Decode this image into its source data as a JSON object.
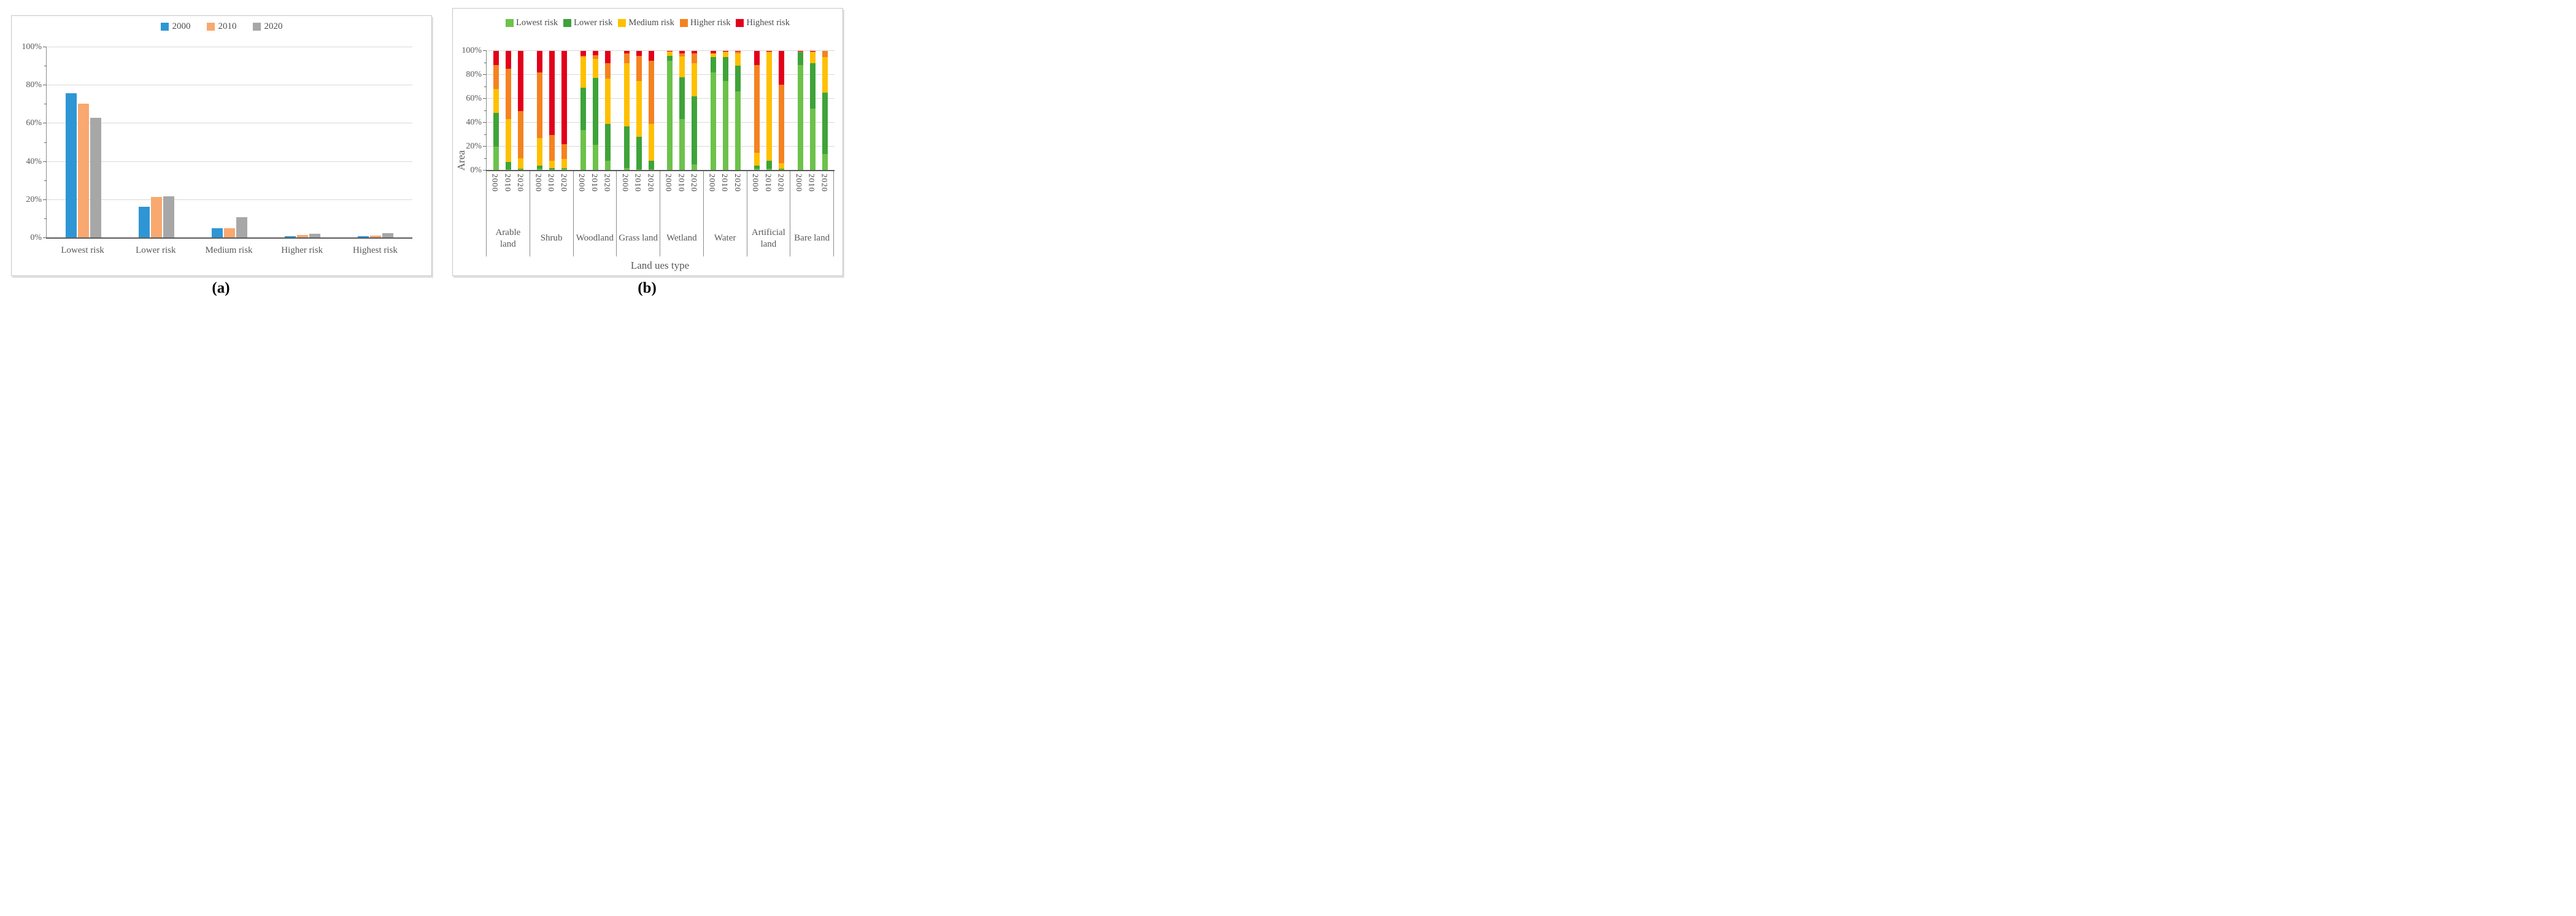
{
  "panels": {
    "a": {
      "caption": "(a)"
    },
    "b": {
      "caption": "(b)"
    }
  },
  "colors": {
    "gridline": "#d9d9d9",
    "axis": "#595959",
    "label_text": "#595959"
  },
  "chart_data": [
    {
      "panel": "a",
      "type": "bar",
      "title": "",
      "xlabel": "",
      "ylabel": "",
      "categories": [
        "Lowest risk",
        "Lower risk",
        "Medium risk",
        "Higher risk",
        "Highest risk"
      ],
      "series": [
        {
          "name": "2000",
          "color": "#2E96D4",
          "values": [
            76,
            16.5,
            5.2,
            1.0,
            1.0
          ]
        },
        {
          "name": "2010",
          "color": "#F9A870",
          "values": [
            70.5,
            21.5,
            5.0,
            1.5,
            1.3
          ]
        },
        {
          "name": "2020",
          "color": "#A7A7A7",
          "values": [
            63,
            22,
            11,
            2.2,
            2.5
          ]
        }
      ],
      "ylim": [
        0,
        100
      ],
      "grid": true,
      "legend_position": "top",
      "y_ticks": [
        {
          "value": 0,
          "label": "0%"
        },
        {
          "value": 20,
          "label": "20%"
        },
        {
          "value": 40,
          "label": "40%"
        },
        {
          "value": 60,
          "label": "60%"
        },
        {
          "value": 80,
          "label": "80%"
        },
        {
          "value": 100,
          "label": "100%"
        }
      ],
      "y_minor_ticks": [
        10,
        30,
        50,
        70,
        90
      ]
    },
    {
      "panel": "b",
      "type": "stacked-bar-100",
      "title": "",
      "xlabel": "Land ues type",
      "ylabel": "Area",
      "ylim": [
        0,
        100
      ],
      "grid": true,
      "legend_position": "top",
      "years": [
        "2000",
        "2010",
        "2020"
      ],
      "series_names": [
        "Lowest risk",
        "Lower risk",
        "Medium risk",
        "Higher risk",
        "Highest risk"
      ],
      "series_colors": [
        "#6CC24A",
        "#3EA339",
        "#FFC000",
        "#F58220",
        "#E2001A"
      ],
      "y_ticks": [
        {
          "value": 0,
          "label": "0%"
        },
        {
          "value": 20,
          "label": "20%"
        },
        {
          "value": 40,
          "label": "40%"
        },
        {
          "value": 60,
          "label": "60%"
        },
        {
          "value": 80,
          "label": "80%"
        },
        {
          "value": 100,
          "label": "100%"
        }
      ],
      "y_minor_ticks": [
        10,
        30,
        50,
        70,
        90
      ],
      "groups": [
        {
          "label": "Arable land",
          "values": {
            "2000": [
              20,
              28,
              20,
              20,
              12
            ],
            "2010": [
              1,
              6,
              36,
              42,
              15
            ],
            "2020": [
              1,
              0.5,
              9,
              39.5,
              50
            ]
          }
        },
        {
          "label": "Shrub",
          "values": {
            "2000": [
              1.5,
              2.5,
              23,
              55,
              18
            ],
            "2010": [
              1,
              1,
              6,
              22,
              70
            ],
            "2020": [
              1.5,
              0.5,
              8,
              12,
              78
            ]
          }
        },
        {
          "label": "Woodland",
          "values": {
            "2000": [
              34,
              35,
              26,
              1,
              4
            ],
            "2010": [
              21.5,
              56,
              16,
              3,
              3.5
            ],
            "2020": [
              8,
              31,
              38,
              13,
              10
            ]
          }
        },
        {
          "label": "Grass land",
          "values": {
            "2000": [
              2,
              35,
              53,
              8,
              2
            ],
            "2010": [
              1,
              27,
              47,
              21,
              4
            ],
            "2020": [
              1,
              7,
              31,
              53,
              8
            ]
          }
        },
        {
          "label": "Wetland",
          "values": {
            "2000": [
              92,
              4,
              3.5,
              0,
              0.5
            ],
            "2010": [
              43,
              35,
              17.5,
              2.5,
              2
            ],
            "2020": [
              5,
              57,
              28,
              8,
              2
            ]
          }
        },
        {
          "label": "Water",
          "values": {
            "2000": [
              82,
              13,
              3,
              0,
              2
            ],
            "2010": [
              75,
              20,
              4,
              0.5,
              0.5
            ],
            "2020": [
              66,
              21.5,
              10.5,
              1.5,
              0.5
            ]
          }
        },
        {
          "label": "Artificial land",
          "values": {
            "2000": [
              1.5,
              2.5,
              11,
              73,
              12
            ],
            "2010": [
              1.5,
              6.5,
              91,
              0.5,
              0.5
            ],
            "2020": [
              1,
              0.5,
              4.5,
              66,
              28
            ]
          }
        },
        {
          "label": "Bare land",
          "values": {
            "2000": [
              88,
              11,
              0.4,
              0.3,
              0.3
            ],
            "2010": [
              52,
              38,
              9,
              0.7,
              0.3
            ],
            "2020": [
              14,
              51,
              30,
              5,
              0
            ]
          }
        }
      ]
    }
  ]
}
